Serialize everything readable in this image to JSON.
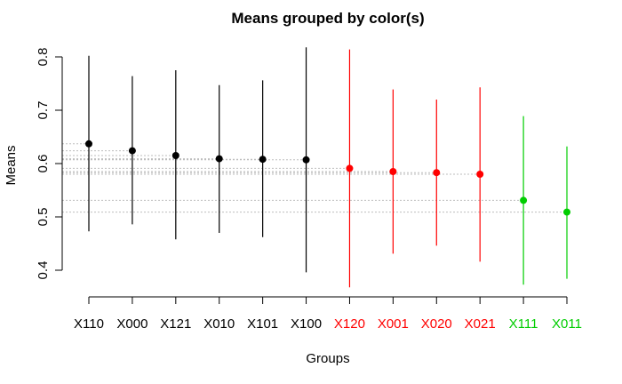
{
  "chart_data": {
    "type": "scatter",
    "title": "Means grouped by color(s)",
    "xlabel": "Groups",
    "ylabel": "Means",
    "ylim": [
      0.35,
      0.82
    ],
    "yticks": [
      0.4,
      0.5,
      0.6,
      0.7,
      0.8
    ],
    "grid": false,
    "categories": [
      "X110",
      "X000",
      "X121",
      "X010",
      "X101",
      "X100",
      "X120",
      "X001",
      "X020",
      "X021",
      "X111",
      "X011"
    ],
    "means": [
      0.637,
      0.624,
      0.615,
      0.609,
      0.608,
      0.607,
      0.591,
      0.585,
      0.583,
      0.58,
      0.531,
      0.509
    ],
    "lower": [
      0.473,
      0.486,
      0.458,
      0.47,
      0.462,
      0.396,
      0.368,
      0.431,
      0.446,
      0.416,
      0.373,
      0.384
    ],
    "upper": [
      0.802,
      0.764,
      0.775,
      0.747,
      0.756,
      0.818,
      0.814,
      0.739,
      0.72,
      0.743,
      0.689,
      0.632
    ],
    "colors": [
      "#000000",
      "#000000",
      "#000000",
      "#000000",
      "#000000",
      "#000000",
      "#ff0000",
      "#ff0000",
      "#ff0000",
      "#ff0000",
      "#00cd00",
      "#00cd00"
    ]
  }
}
